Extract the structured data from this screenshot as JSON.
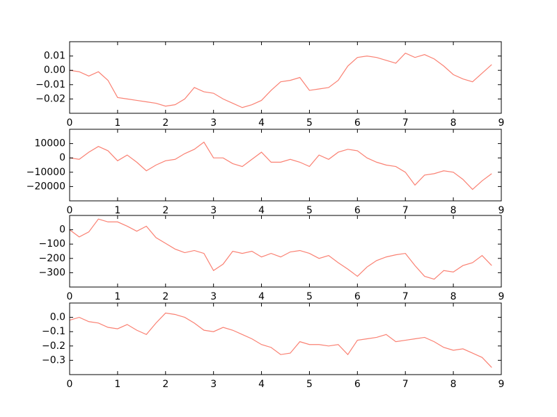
{
  "chart_data": [
    {
      "type": "line",
      "color": "#fa8072",
      "x": [
        0,
        0.2,
        0.4,
        0.6,
        0.8,
        1.0,
        1.2,
        1.4,
        1.6,
        1.8,
        2.0,
        2.2,
        2.4,
        2.6,
        2.8,
        3.0,
        3.2,
        3.4,
        3.6,
        3.8,
        4.0,
        4.2,
        4.4,
        4.6,
        4.8,
        5.0,
        5.2,
        5.4,
        5.6,
        5.8,
        6.0,
        6.2,
        6.4,
        6.6,
        6.8,
        7.0,
        7.2,
        7.4,
        7.6,
        7.8,
        8.0,
        8.2,
        8.4,
        8.6,
        8.8
      ],
      "values": [
        0.0,
        -0.001,
        -0.004,
        -0.001,
        -0.007,
        -0.019,
        -0.02,
        -0.021,
        -0.022,
        -0.023,
        -0.025,
        -0.024,
        -0.02,
        -0.012,
        -0.015,
        -0.016,
        -0.02,
        -0.023,
        -0.026,
        -0.024,
        -0.021,
        -0.014,
        -0.008,
        -0.007,
        -0.005,
        -0.014,
        -0.013,
        -0.012,
        -0.007,
        0.003,
        0.009,
        0.01,
        0.009,
        0.007,
        0.005,
        0.012,
        0.009,
        0.011,
        0.008,
        0.003,
        -0.003,
        -0.006,
        -0.008,
        -0.002,
        0.004
      ],
      "xlim": [
        0,
        9
      ],
      "xticks": [
        0,
        1,
        2,
        3,
        4,
        5,
        6,
        7,
        8,
        9
      ],
      "ylim": [
        -0.03,
        0.02
      ],
      "yticks": [
        {
          "value": -0.02,
          "label": "−0.02"
        },
        {
          "value": -0.01,
          "label": "−0.01"
        },
        {
          "value": 0,
          "label": "0.00"
        },
        0.01
      ]
    },
    {
      "type": "line",
      "color": "#fa8072",
      "x": [
        0,
        0.2,
        0.4,
        0.6,
        0.8,
        1.0,
        1.2,
        1.4,
        1.6,
        1.8,
        2.0,
        2.2,
        2.4,
        2.6,
        2.8,
        3.0,
        3.2,
        3.4,
        3.6,
        3.8,
        4.0,
        4.2,
        4.4,
        4.6,
        4.8,
        5.0,
        5.2,
        5.4,
        5.6,
        5.8,
        6.0,
        6.2,
        6.4,
        6.6,
        6.8,
        7.0,
        7.2,
        7.4,
        7.6,
        7.8,
        8.0,
        8.2,
        8.4,
        8.6,
        8.8
      ],
      "values": [
        0,
        -1000,
        4000,
        8000,
        5000,
        -2000,
        2000,
        -3000,
        -9000,
        -5000,
        -2000,
        -1000,
        3000,
        6000,
        11000,
        0,
        0,
        -4000,
        -6000,
        -1000,
        4000,
        -3000,
        -3000,
        -1000,
        -3000,
        -6000,
        2000,
        -1000,
        4000,
        6000,
        5000,
        0,
        -3000,
        -5000,
        -6000,
        -10000,
        -19000,
        -12000,
        -11000,
        -9000,
        -10000,
        -15000,
        -22000,
        -16000,
        -11000
      ],
      "xlim": [
        0,
        9
      ],
      "xticks": [
        0,
        1,
        2,
        3,
        4,
        5,
        6,
        7,
        8,
        9
      ],
      "ylim": [
        -30000,
        20000
      ],
      "yticks": [
        {
          "value": -20000,
          "label": "−20000"
        },
        {
          "value": -10000,
          "label": "−10000"
        },
        0,
        10000
      ]
    },
    {
      "type": "line",
      "color": "#fa8072",
      "x": [
        0,
        0.2,
        0.4,
        0.6,
        0.8,
        1.0,
        1.2,
        1.4,
        1.6,
        1.8,
        2.0,
        2.2,
        2.4,
        2.6,
        2.8,
        3.0,
        3.2,
        3.4,
        3.6,
        3.8,
        4.0,
        4.2,
        4.4,
        4.6,
        4.8,
        5.0,
        5.2,
        5.4,
        5.6,
        5.8,
        6.0,
        6.2,
        6.4,
        6.6,
        6.8,
        7.0,
        7.2,
        7.4,
        7.6,
        7.8,
        8.0,
        8.2,
        8.4,
        8.6,
        8.8
      ],
      "values": [
        0,
        -50,
        -15,
        75,
        55,
        55,
        25,
        -10,
        25,
        -55,
        -95,
        -135,
        -160,
        -145,
        -165,
        -285,
        -240,
        -150,
        -165,
        -150,
        -190,
        -165,
        -190,
        -155,
        -145,
        -165,
        -200,
        -180,
        -230,
        -275,
        -325,
        -260,
        -215,
        -190,
        -175,
        -165,
        -250,
        -325,
        -345,
        -285,
        -295,
        -250,
        -230,
        -180,
        -250
      ],
      "xlim": [
        0,
        9
      ],
      "xticks": [
        0,
        1,
        2,
        3,
        4,
        5,
        6,
        7,
        8,
        9
      ],
      "ylim": [
        -400,
        100
      ],
      "yticks": [
        {
          "value": -300,
          "label": "−300"
        },
        {
          "value": -200,
          "label": "−200"
        },
        {
          "value": -100,
          "label": "−100"
        },
        0
      ]
    },
    {
      "type": "line",
      "color": "#fa8072",
      "x": [
        0,
        0.2,
        0.4,
        0.6,
        0.8,
        1.0,
        1.2,
        1.4,
        1.6,
        1.8,
        2.0,
        2.2,
        2.4,
        2.6,
        2.8,
        3.0,
        3.2,
        3.4,
        3.6,
        3.8,
        4.0,
        4.2,
        4.4,
        4.6,
        4.8,
        5.0,
        5.2,
        5.4,
        5.6,
        5.8,
        6.0,
        6.2,
        6.4,
        6.6,
        6.8,
        7.0,
        7.2,
        7.4,
        7.6,
        7.8,
        8.0,
        8.2,
        8.4,
        8.6,
        8.8
      ],
      "values": [
        -0.02,
        0.0,
        -0.03,
        -0.04,
        -0.07,
        -0.08,
        -0.05,
        -0.09,
        -0.12,
        -0.04,
        0.03,
        0.02,
        0.0,
        -0.04,
        -0.09,
        -0.1,
        -0.07,
        -0.09,
        -0.12,
        -0.15,
        -0.19,
        -0.21,
        -0.26,
        -0.25,
        -0.17,
        -0.19,
        -0.19,
        -0.2,
        -0.19,
        -0.26,
        -0.16,
        -0.15,
        -0.14,
        -0.12,
        -0.17,
        -0.16,
        -0.15,
        -0.14,
        -0.17,
        -0.21,
        -0.23,
        -0.22,
        -0.25,
        -0.28,
        -0.35
      ],
      "xlim": [
        0,
        9
      ],
      "xticks": [
        0,
        1,
        2,
        3,
        4,
        5,
        6,
        7,
        8,
        9
      ],
      "ylim": [
        -0.4,
        0.1
      ],
      "yticks": [
        {
          "value": -0.3,
          "label": "−0.3"
        },
        {
          "value": -0.2,
          "label": "−0.2"
        },
        {
          "value": -0.1,
          "label": "−0.1"
        },
        {
          "value": 0,
          "label": "0.0"
        }
      ]
    }
  ]
}
